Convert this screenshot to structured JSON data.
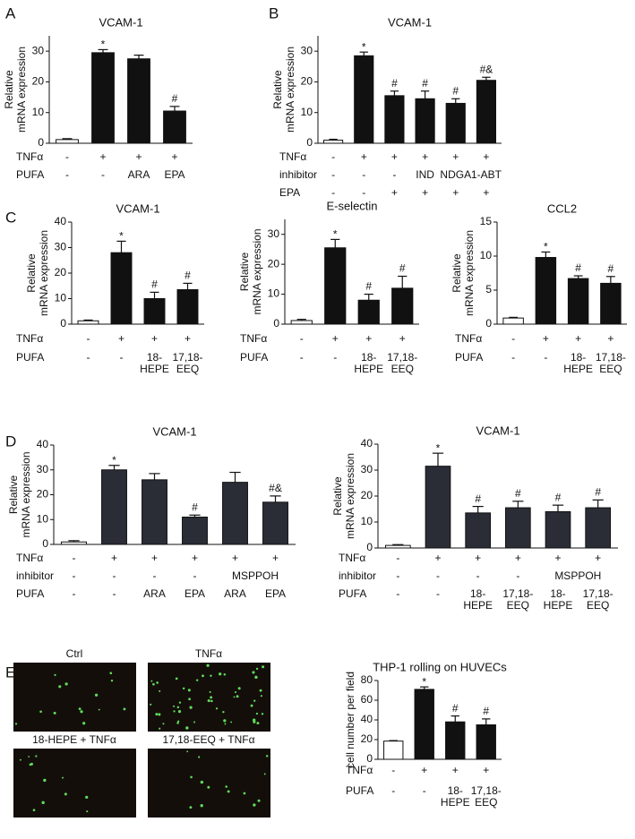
{
  "panel_labels": [
    "A",
    "B",
    "C",
    "D",
    "E"
  ],
  "images": [
    {
      "label": "Ctrl"
    },
    {
      "label": "TNFα"
    },
    {
      "label": "18-HEPE + TNFα"
    },
    {
      "label": "17,18-EEQ + TNFα"
    }
  ],
  "chart_data": [
    {
      "type": "bar",
      "title": "VCAM-1",
      "ylabel": [
        "Relative",
        "mRNA expression"
      ],
      "ylim": [
        0,
        35
      ],
      "yticks": [
        0,
        10,
        20,
        30
      ],
      "values": [
        1.2,
        29.5,
        27.5,
        10.5
      ],
      "errors": [
        0.3,
        1,
        1.2,
        1.5
      ],
      "annotations": [
        null,
        "*",
        null,
        "#"
      ],
      "colors": [
        "#ffffff",
        "#111111",
        "#111111",
        "#111111"
      ],
      "conditions": [
        {
          "name": "TNFα",
          "values": [
            "-",
            "+",
            "+",
            "+"
          ]
        },
        {
          "name": "PUFA",
          "values": [
            "-",
            "-",
            "ARA",
            "EPA"
          ]
        }
      ]
    },
    {
      "type": "bar",
      "title": "VCAM-1",
      "ylabel": [
        "Relative",
        "mRNA expression"
      ],
      "ylim": [
        0,
        35
      ],
      "yticks": [
        0,
        10,
        20,
        30
      ],
      "values": [
        1,
        28.5,
        15.5,
        14.5,
        13,
        20.5
      ],
      "errors": [
        0.3,
        1.2,
        1.5,
        2.5,
        1.5,
        1
      ],
      "annotations": [
        null,
        "*",
        "#",
        "#",
        "#",
        "#&"
      ],
      "colors": [
        "#ffffff",
        "#111111",
        "#111111",
        "#111111",
        "#111111",
        "#111111"
      ],
      "conditions": [
        {
          "name": "TNFα",
          "values": [
            "-",
            "+",
            "+",
            "+",
            "+",
            "+"
          ]
        },
        {
          "name": "inhibitor",
          "values": [
            "-",
            "-",
            "-",
            "IND",
            "NDGA",
            "1-ABT"
          ]
        },
        {
          "name": "EPA",
          "values": [
            "-",
            "-",
            "+",
            "+",
            "+",
            "+"
          ]
        }
      ]
    },
    {
      "type": "bar",
      "title": "VCAM-1",
      "ylabel": [
        "Relative",
        "mRNA expression"
      ],
      "ylim": [
        0,
        40
      ],
      "yticks": [
        0,
        10,
        20,
        30,
        40
      ],
      "values": [
        1.3,
        28,
        10,
        13.5
      ],
      "errors": [
        0.3,
        4.5,
        2.5,
        2.5
      ],
      "annotations": [
        null,
        "*",
        "#",
        "#"
      ],
      "colors": [
        "#ffffff",
        "#111111",
        "#111111",
        "#111111"
      ],
      "conditions": [
        {
          "name": "TNFα",
          "values": [
            "-",
            "+",
            "+",
            "+"
          ]
        },
        {
          "name": "PUFA",
          "values": [
            "-",
            "-",
            [
              "18-",
              "HEPE"
            ],
            [
              "17,18-",
              "EEQ"
            ]
          ]
        }
      ]
    },
    {
      "type": "bar",
      "title": "E-selectin",
      "ylabel": [
        "Relative",
        "mRNA expression"
      ],
      "ylim": [
        0,
        35
      ],
      "yticks": [
        0,
        10,
        20,
        30
      ],
      "values": [
        1.2,
        25.5,
        8,
        12
      ],
      "errors": [
        0.4,
        2.8,
        2,
        4
      ],
      "annotations": [
        null,
        "*",
        "#",
        "#"
      ],
      "colors": [
        "#ffffff",
        "#111111",
        "#111111",
        "#111111"
      ],
      "conditions": [
        {
          "name": "TNFα",
          "values": [
            "-",
            "+",
            "+",
            "+"
          ]
        },
        {
          "name": "PUFA",
          "values": [
            "-",
            "-",
            [
              "18-",
              "HEPE"
            ],
            [
              "17,18-",
              "EEQ"
            ]
          ]
        }
      ]
    },
    {
      "type": "bar",
      "title": "CCL2",
      "ylabel": [
        "Relative",
        "mRNA expression"
      ],
      "ylim": [
        0,
        15
      ],
      "yticks": [
        0,
        5,
        10,
        15
      ],
      "values": [
        0.9,
        9.8,
        6.7,
        6
      ],
      "errors": [
        0.1,
        0.8,
        0.4,
        1
      ],
      "annotations": [
        null,
        "*",
        "#",
        "#"
      ],
      "colors": [
        "#ffffff",
        "#111111",
        "#111111",
        "#111111"
      ],
      "conditions": [
        {
          "name": "TNFα",
          "values": [
            "-",
            "+",
            "+",
            "+"
          ]
        },
        {
          "name": "PUFA",
          "values": [
            "-",
            "-",
            [
              "18-",
              "HEPE"
            ],
            [
              "17,18-",
              "EEQ"
            ]
          ]
        }
      ]
    },
    {
      "type": "bar",
      "title": "VCAM-1",
      "ylabel": [
        "Relative",
        "mRNA expression"
      ],
      "ylim": [
        0,
        40
      ],
      "yticks": [
        0,
        10,
        20,
        30,
        40
      ],
      "values": [
        1,
        30,
        26,
        11,
        25,
        17
      ],
      "errors": [
        0.5,
        1.8,
        2.5,
        0.8,
        4,
        2.5
      ],
      "annotations": [
        null,
        "*",
        null,
        "#",
        null,
        "#&"
      ],
      "colors": [
        "#ffffff",
        "#2a2d36",
        "#2a2d36",
        "#2a2d36",
        "#2a2d36",
        "#2a2d36"
      ],
      "conditions": [
        {
          "name": "TNFα",
          "values": [
            "-",
            "+",
            "+",
            "+",
            "+",
            "+"
          ]
        },
        {
          "name": "inhibitor",
          "values": [
            "-",
            "-",
            "-",
            "-",
            "MSPPOH",
            null
          ]
        },
        {
          "name": "PUFA",
          "values": [
            "-",
            "-",
            "ARA",
            "EPA",
            "ARA",
            "EPA"
          ]
        }
      ]
    },
    {
      "type": "bar",
      "title": "VCAM-1",
      "ylabel": [
        "Relative",
        "mRNA expression"
      ],
      "ylim": [
        0,
        40
      ],
      "yticks": [
        0,
        10,
        20,
        30,
        40
      ],
      "values": [
        1,
        31.5,
        13.5,
        15.5,
        14,
        15.5
      ],
      "errors": [
        0.3,
        5,
        2.5,
        2.5,
        2.5,
        3
      ],
      "annotations": [
        null,
        "*",
        "#",
        "#",
        "#",
        "#"
      ],
      "colors": [
        "#ffffff",
        "#2a2d36",
        "#2a2d36",
        "#2a2d36",
        "#2a2d36",
        "#2a2d36"
      ],
      "conditions": [
        {
          "name": "TNFα",
          "values": [
            "-",
            "+",
            "+",
            "+",
            "+",
            "+"
          ]
        },
        {
          "name": "inhibitor",
          "values": [
            "-",
            "-",
            "-",
            "-",
            "MSPPOH",
            null
          ]
        },
        {
          "name": "PUFA",
          "values": [
            "-",
            "-",
            [
              "18-",
              "HEPE"
            ],
            [
              "17,18-",
              "EEQ"
            ],
            [
              "18-",
              "HEPE"
            ],
            [
              "17,18-",
              "EEQ"
            ]
          ]
        }
      ]
    },
    {
      "type": "bar",
      "title": "THP-1 rolling on HUVECs",
      "ylabel": [
        "cell number per field"
      ],
      "ylim": [
        0,
        80
      ],
      "yticks": [
        0,
        20,
        40,
        60,
        80
      ],
      "values": [
        18.5,
        71,
        38,
        35
      ],
      "errors": [
        0.5,
        2.5,
        6,
        6
      ],
      "annotations": [
        null,
        "*",
        "#",
        "#"
      ],
      "colors": [
        "#ffffff",
        "#111111",
        "#111111",
        "#111111"
      ],
      "conditions": [
        {
          "name": "TNFα",
          "values": [
            "-",
            "+",
            "+",
            "+"
          ]
        },
        {
          "name": "PUFA",
          "values": [
            "-",
            "-",
            [
              "18-",
              "HEPE"
            ],
            [
              "17,18-",
              "EEQ"
            ]
          ]
        }
      ]
    }
  ]
}
